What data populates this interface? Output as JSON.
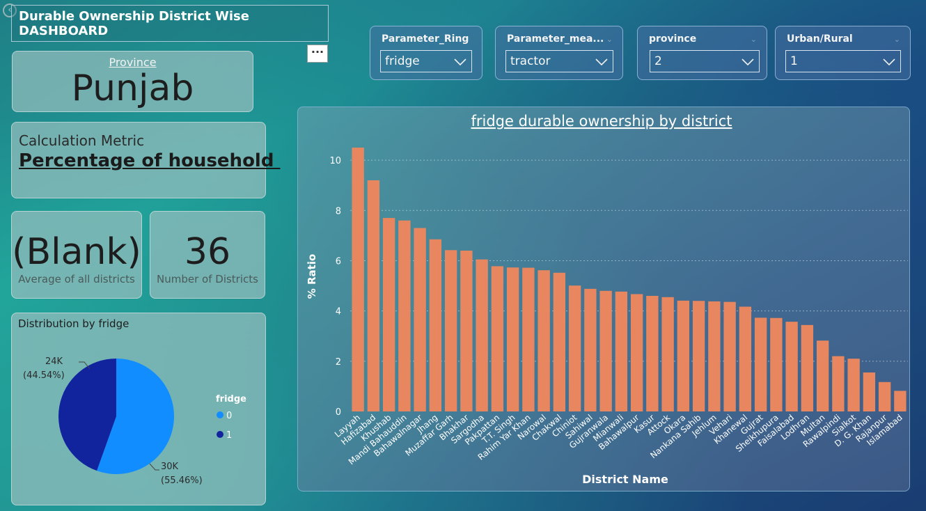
{
  "header": {
    "title": "Durable Ownership District Wise DASHBOARD",
    "more_label": "···"
  },
  "slicers": [
    {
      "label": "Parameter_Ring",
      "value": "fridge"
    },
    {
      "label": "Parameter_mea...",
      "value": "tractor"
    },
    {
      "label": "province",
      "value": "2"
    },
    {
      "label": "Urban/Rural",
      "value": "1"
    }
  ],
  "province_card": {
    "label": "Province",
    "value": "Punjab"
  },
  "metric_card": {
    "label": "Calculation Metric",
    "value": "Percentage of household "
  },
  "avg_card": {
    "value": "(Blank)",
    "label": "Average of all districts"
  },
  "count_card": {
    "value": "36",
    "label": "Number of Districts"
  },
  "pie": {
    "title": "Distribution by fridge",
    "legend_title": "fridge",
    "colors": [
      "#118DFF",
      "#12239E"
    ],
    "slices": [
      {
        "name": "0",
        "value_label": "30K",
        "pct_label": "(55.46%)",
        "pct": 55.46
      },
      {
        "name": "1",
        "value_label": "24K",
        "pct_label": "(44.54%)",
        "pct": 44.54
      }
    ]
  },
  "chart_data": {
    "type": "bar",
    "title": "fridge durable ownership by district",
    "xlabel": "District Name",
    "ylabel": "% Ratio",
    "ylim": [
      0,
      11
    ],
    "yticks": [
      0,
      2,
      4,
      6,
      8,
      10
    ],
    "grid": true,
    "color": "#E8875F",
    "categories": [
      "Layyah",
      "Hafizabad",
      "Khushab",
      "Mandi Bahauddin",
      "Bahawalnagar",
      "Jhang",
      "Muzaffar Garh",
      "Bhakhar",
      "Sargodha",
      "Pakpattan",
      "T.T. Singh",
      "Rahim Yar Khan",
      "Narowal",
      "Chakwal",
      "Chiniot",
      "Sahiwal",
      "Gujranwala",
      "Mianwali",
      "Bahawalpur",
      "Kasur",
      "Attock",
      "Okara",
      "Nankana Sahib",
      "Jehlum",
      "Vehari",
      "Khanewal",
      "Gujrat",
      "Sheikhupura",
      "Faisalabad",
      "Lodhran",
      "Multan",
      "Rawalpindi",
      "Sialkot",
      "D. G. Khan",
      "Rajanpur",
      "Islamabad"
    ],
    "values": [
      10.5,
      9.2,
      7.7,
      7.6,
      7.3,
      6.85,
      6.42,
      6.4,
      6.05,
      5.78,
      5.73,
      5.72,
      5.62,
      5.52,
      5.01,
      4.88,
      4.8,
      4.77,
      4.67,
      4.6,
      4.55,
      4.41,
      4.4,
      4.38,
      4.36,
      4.17,
      3.73,
      3.72,
      3.57,
      3.44,
      2.82,
      2.2,
      2.1,
      1.55,
      1.17,
      0.82
    ]
  }
}
